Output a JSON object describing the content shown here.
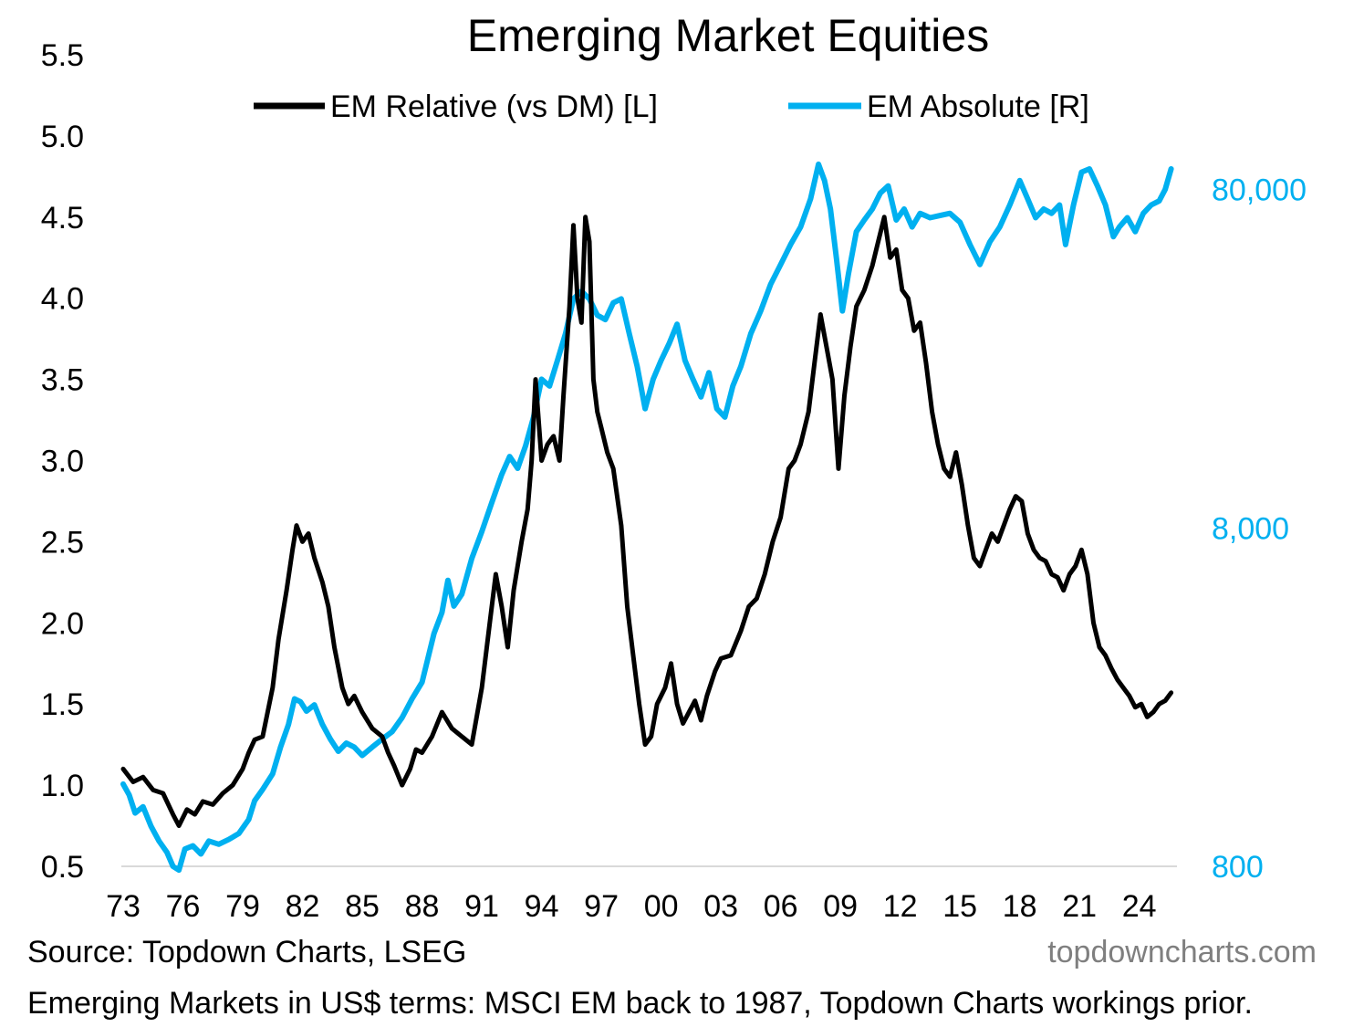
{
  "chart_data": {
    "type": "line",
    "title": "Emerging Market Equities",
    "left_axis": {
      "min": 0.5,
      "max": 5.5,
      "ticks": [
        "0.5",
        "1.0",
        "1.5",
        "2.0",
        "2.5",
        "3.0",
        "3.5",
        "4.0",
        "4.5",
        "5.0",
        "5.5"
      ]
    },
    "right_axis": {
      "scale": "log",
      "min": 800,
      "max": 200000,
      "ticks": [
        800,
        8000,
        80000
      ],
      "tick_labels": [
        "800",
        "8,000",
        "80,000"
      ],
      "color": "#00B0F0"
    },
    "x_axis": {
      "min": 1973,
      "max": 2025.8,
      "ticks": [
        1973,
        1976,
        1979,
        1982,
        1985,
        1988,
        1991,
        1994,
        1997,
        2000,
        2003,
        2006,
        2009,
        2012,
        2015,
        2018,
        2021,
        2024
      ],
      "tick_labels": [
        "73",
        "76",
        "79",
        "82",
        "85",
        "88",
        "91",
        "94",
        "97",
        "00",
        "03",
        "06",
        "09",
        "12",
        "15",
        "18",
        "21",
        "24"
      ]
    },
    "legend_position": "top-center",
    "grid": false,
    "series": [
      {
        "name": "EM Relative (vs DM) [L]",
        "axis": "left",
        "color": "#000000",
        "points": [
          [
            1973.0,
            1.1
          ],
          [
            1973.5,
            1.02
          ],
          [
            1974.0,
            1.05
          ],
          [
            1974.5,
            0.97
          ],
          [
            1975.0,
            0.95
          ],
          [
            1975.5,
            0.82
          ],
          [
            1975.8,
            0.75
          ],
          [
            1976.2,
            0.85
          ],
          [
            1976.6,
            0.82
          ],
          [
            1977.0,
            0.9
          ],
          [
            1977.5,
            0.88
          ],
          [
            1978.0,
            0.95
          ],
          [
            1978.5,
            1.0
          ],
          [
            1979.0,
            1.1
          ],
          [
            1979.3,
            1.2
          ],
          [
            1979.6,
            1.28
          ],
          [
            1980.0,
            1.3
          ],
          [
            1980.5,
            1.6
          ],
          [
            1980.8,
            1.9
          ],
          [
            1981.2,
            2.2
          ],
          [
            1981.5,
            2.45
          ],
          [
            1981.7,
            2.6
          ],
          [
            1982.0,
            2.5
          ],
          [
            1982.3,
            2.55
          ],
          [
            1982.6,
            2.4
          ],
          [
            1983.0,
            2.25
          ],
          [
            1983.3,
            2.1
          ],
          [
            1983.6,
            1.85
          ],
          [
            1984.0,
            1.6
          ],
          [
            1984.3,
            1.5
          ],
          [
            1984.6,
            1.55
          ],
          [
            1985.0,
            1.45
          ],
          [
            1985.5,
            1.35
          ],
          [
            1986.0,
            1.3
          ],
          [
            1986.3,
            1.2
          ],
          [
            1986.6,
            1.12
          ],
          [
            1987.0,
            1.0
          ],
          [
            1987.4,
            1.1
          ],
          [
            1987.7,
            1.22
          ],
          [
            1988.0,
            1.2
          ],
          [
            1988.5,
            1.3
          ],
          [
            1989.0,
            1.45
          ],
          [
            1989.5,
            1.35
          ],
          [
            1990.0,
            1.3
          ],
          [
            1990.5,
            1.25
          ],
          [
            1991.0,
            1.6
          ],
          [
            1991.4,
            2.0
          ],
          [
            1991.7,
            2.3
          ],
          [
            1992.0,
            2.1
          ],
          [
            1992.3,
            1.85
          ],
          [
            1992.6,
            2.2
          ],
          [
            1993.0,
            2.5
          ],
          [
            1993.3,
            2.7
          ],
          [
            1993.5,
            3.0
          ],
          [
            1993.7,
            3.5
          ],
          [
            1994.0,
            3.0
          ],
          [
            1994.3,
            3.1
          ],
          [
            1994.6,
            3.15
          ],
          [
            1994.9,
            3.0
          ],
          [
            1995.1,
            3.4
          ],
          [
            1995.4,
            3.95
          ],
          [
            1995.6,
            4.45
          ],
          [
            1995.8,
            4.0
          ],
          [
            1996.0,
            3.85
          ],
          [
            1996.2,
            4.5
          ],
          [
            1996.4,
            4.35
          ],
          [
            1996.6,
            3.5
          ],
          [
            1996.8,
            3.3
          ],
          [
            1997.0,
            3.2
          ],
          [
            1997.3,
            3.05
          ],
          [
            1997.6,
            2.95
          ],
          [
            1998.0,
            2.6
          ],
          [
            1998.3,
            2.1
          ],
          [
            1998.6,
            1.8
          ],
          [
            1998.9,
            1.5
          ],
          [
            1999.2,
            1.25
          ],
          [
            1999.5,
            1.3
          ],
          [
            1999.8,
            1.5
          ],
          [
            2000.2,
            1.6
          ],
          [
            2000.5,
            1.75
          ],
          [
            2000.8,
            1.5
          ],
          [
            2001.1,
            1.38
          ],
          [
            2001.4,
            1.45
          ],
          [
            2001.7,
            1.52
          ],
          [
            2002.0,
            1.4
          ],
          [
            2002.3,
            1.55
          ],
          [
            2002.7,
            1.7
          ],
          [
            2003.0,
            1.78
          ],
          [
            2003.5,
            1.8
          ],
          [
            2004.0,
            1.95
          ],
          [
            2004.4,
            2.1
          ],
          [
            2004.8,
            2.15
          ],
          [
            2005.2,
            2.3
          ],
          [
            2005.6,
            2.5
          ],
          [
            2006.0,
            2.65
          ],
          [
            2006.4,
            2.95
          ],
          [
            2006.7,
            3.0
          ],
          [
            2007.0,
            3.1
          ],
          [
            2007.4,
            3.3
          ],
          [
            2007.7,
            3.6
          ],
          [
            2008.0,
            3.9
          ],
          [
            2008.3,
            3.7
          ],
          [
            2008.6,
            3.5
          ],
          [
            2008.9,
            2.95
          ],
          [
            2009.2,
            3.4
          ],
          [
            2009.5,
            3.7
          ],
          [
            2009.8,
            3.95
          ],
          [
            2010.2,
            4.05
          ],
          [
            2010.6,
            4.2
          ],
          [
            2010.9,
            4.35
          ],
          [
            2011.2,
            4.5
          ],
          [
            2011.5,
            4.25
          ],
          [
            2011.8,
            4.3
          ],
          [
            2012.1,
            4.05
          ],
          [
            2012.4,
            4.0
          ],
          [
            2012.7,
            3.8
          ],
          [
            2013.0,
            3.85
          ],
          [
            2013.3,
            3.6
          ],
          [
            2013.6,
            3.3
          ],
          [
            2013.9,
            3.1
          ],
          [
            2014.2,
            2.95
          ],
          [
            2014.5,
            2.9
          ],
          [
            2014.8,
            3.05
          ],
          [
            2015.1,
            2.85
          ],
          [
            2015.4,
            2.6
          ],
          [
            2015.7,
            2.4
          ],
          [
            2016.0,
            2.35
          ],
          [
            2016.3,
            2.45
          ],
          [
            2016.6,
            2.55
          ],
          [
            2016.9,
            2.5
          ],
          [
            2017.2,
            2.6
          ],
          [
            2017.5,
            2.7
          ],
          [
            2017.8,
            2.78
          ],
          [
            2018.1,
            2.75
          ],
          [
            2018.4,
            2.55
          ],
          [
            2018.7,
            2.45
          ],
          [
            2019.0,
            2.4
          ],
          [
            2019.3,
            2.38
          ],
          [
            2019.6,
            2.3
          ],
          [
            2019.9,
            2.28
          ],
          [
            2020.2,
            2.2
          ],
          [
            2020.5,
            2.3
          ],
          [
            2020.8,
            2.35
          ],
          [
            2021.1,
            2.45
          ],
          [
            2021.4,
            2.3
          ],
          [
            2021.7,
            2.0
          ],
          [
            2022.0,
            1.85
          ],
          [
            2022.3,
            1.8
          ],
          [
            2022.6,
            1.72
          ],
          [
            2022.9,
            1.65
          ],
          [
            2023.2,
            1.6
          ],
          [
            2023.5,
            1.55
          ],
          [
            2023.8,
            1.48
          ],
          [
            2024.1,
            1.5
          ],
          [
            2024.4,
            1.42
          ],
          [
            2024.7,
            1.45
          ],
          [
            2025.0,
            1.5
          ],
          [
            2025.3,
            1.52
          ],
          [
            2025.6,
            1.57
          ]
        ]
      },
      {
        "name": "EM Absolute [R]",
        "axis": "right",
        "color": "#00B0F0",
        "points": [
          [
            1973.0,
            1400
          ],
          [
            1973.3,
            1300
          ],
          [
            1973.6,
            1150
          ],
          [
            1974.0,
            1200
          ],
          [
            1974.4,
            1050
          ],
          [
            1974.8,
            950
          ],
          [
            1975.2,
            880
          ],
          [
            1975.5,
            800
          ],
          [
            1975.8,
            780
          ],
          [
            1976.1,
            900
          ],
          [
            1976.5,
            920
          ],
          [
            1976.9,
            870
          ],
          [
            1977.3,
            950
          ],
          [
            1977.8,
            930
          ],
          [
            1978.3,
            960
          ],
          [
            1978.8,
            1000
          ],
          [
            1979.3,
            1100
          ],
          [
            1979.6,
            1250
          ],
          [
            1980.0,
            1350
          ],
          [
            1980.5,
            1500
          ],
          [
            1980.9,
            1800
          ],
          [
            1981.3,
            2100
          ],
          [
            1981.6,
            2500
          ],
          [
            1981.9,
            2450
          ],
          [
            1982.2,
            2300
          ],
          [
            1982.6,
            2400
          ],
          [
            1983.0,
            2100
          ],
          [
            1983.4,
            1900
          ],
          [
            1983.8,
            1750
          ],
          [
            1984.2,
            1850
          ],
          [
            1984.6,
            1800
          ],
          [
            1985.0,
            1700
          ],
          [
            1985.5,
            1800
          ],
          [
            1986.0,
            1900
          ],
          [
            1986.5,
            2000
          ],
          [
            1987.0,
            2200
          ],
          [
            1987.5,
            2500
          ],
          [
            1988.0,
            2800
          ],
          [
            1988.3,
            3300
          ],
          [
            1988.6,
            3900
          ],
          [
            1989.0,
            4500
          ],
          [
            1989.3,
            5600
          ],
          [
            1989.6,
            4700
          ],
          [
            1990.0,
            5100
          ],
          [
            1990.5,
            6500
          ],
          [
            1991.0,
            7800
          ],
          [
            1991.5,
            9500
          ],
          [
            1992.0,
            11500
          ],
          [
            1992.4,
            13000
          ],
          [
            1992.8,
            12000
          ],
          [
            1993.2,
            14000
          ],
          [
            1993.6,
            17000
          ],
          [
            1994.0,
            22000
          ],
          [
            1994.4,
            21000
          ],
          [
            1994.8,
            25000
          ],
          [
            1995.2,
            30000
          ],
          [
            1995.6,
            38000
          ],
          [
            1996.0,
            40000
          ],
          [
            1996.4,
            38000
          ],
          [
            1996.8,
            34000
          ],
          [
            1997.2,
            33000
          ],
          [
            1997.6,
            37000
          ],
          [
            1998.0,
            38000
          ],
          [
            1998.4,
            30000
          ],
          [
            1998.8,
            24000
          ],
          [
            1999.2,
            18000
          ],
          [
            1999.6,
            22000
          ],
          [
            2000.0,
            25000
          ],
          [
            2000.4,
            28000
          ],
          [
            2000.8,
            32000
          ],
          [
            2001.2,
            25000
          ],
          [
            2001.6,
            22000
          ],
          [
            2002.0,
            19500
          ],
          [
            2002.4,
            23000
          ],
          [
            2002.8,
            18000
          ],
          [
            2003.2,
            17000
          ],
          [
            2003.6,
            21000
          ],
          [
            2004.0,
            24000
          ],
          [
            2004.5,
            30000
          ],
          [
            2005.0,
            35000
          ],
          [
            2005.5,
            42000
          ],
          [
            2006.0,
            48000
          ],
          [
            2006.5,
            55000
          ],
          [
            2007.0,
            62000
          ],
          [
            2007.5,
            75000
          ],
          [
            2007.9,
            95000
          ],
          [
            2008.2,
            85000
          ],
          [
            2008.5,
            70000
          ],
          [
            2008.8,
            50000
          ],
          [
            2009.1,
            35000
          ],
          [
            2009.4,
            45000
          ],
          [
            2009.8,
            60000
          ],
          [
            2010.2,
            65000
          ],
          [
            2010.6,
            70000
          ],
          [
            2011.0,
            78000
          ],
          [
            2011.4,
            82000
          ],
          [
            2011.8,
            65000
          ],
          [
            2012.2,
            70000
          ],
          [
            2012.6,
            62000
          ],
          [
            2013.0,
            68000
          ],
          [
            2013.5,
            66000
          ],
          [
            2014.0,
            67000
          ],
          [
            2014.5,
            68000
          ],
          [
            2015.0,
            64000
          ],
          [
            2015.5,
            55000
          ],
          [
            2016.0,
            48000
          ],
          [
            2016.5,
            56000
          ],
          [
            2017.0,
            62000
          ],
          [
            2017.5,
            72000
          ],
          [
            2018.0,
            85000
          ],
          [
            2018.4,
            75000
          ],
          [
            2018.8,
            66000
          ],
          [
            2019.2,
            70000
          ],
          [
            2019.6,
            68000
          ],
          [
            2020.0,
            72000
          ],
          [
            2020.3,
            55000
          ],
          [
            2020.7,
            72000
          ],
          [
            2021.1,
            90000
          ],
          [
            2021.5,
            92000
          ],
          [
            2021.9,
            82000
          ],
          [
            2022.3,
            72000
          ],
          [
            2022.7,
            58000
          ],
          [
            2023.0,
            62000
          ],
          [
            2023.4,
            66000
          ],
          [
            2023.8,
            60000
          ],
          [
            2024.2,
            68000
          ],
          [
            2024.6,
            72000
          ],
          [
            2025.0,
            74000
          ],
          [
            2025.3,
            80000
          ],
          [
            2025.6,
            92000
          ]
        ]
      }
    ]
  },
  "footer": {
    "source": "Source: Topdown Charts, LSEG",
    "brand": "topdowncharts.com",
    "note": "Emerging Markets in US$ terms: MSCI EM back to 1987, Topdown Charts workings prior."
  }
}
